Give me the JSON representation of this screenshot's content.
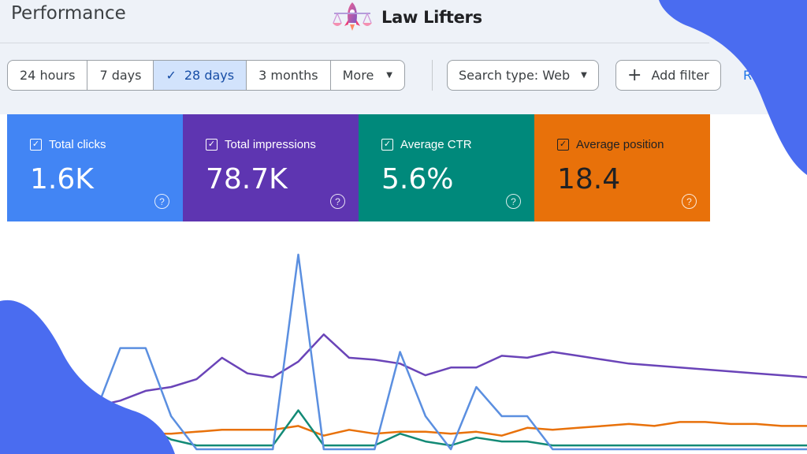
{
  "header": {
    "title": "Performance"
  },
  "logo": {
    "text": "Law Lifters"
  },
  "date_range": {
    "options": [
      {
        "label": "24 hours",
        "selected": false
      },
      {
        "label": "7 days",
        "selected": false
      },
      {
        "label": "28 days",
        "selected": true
      },
      {
        "label": "3 months",
        "selected": false
      },
      {
        "label": "More",
        "selected": false
      }
    ]
  },
  "filters": {
    "search_type": "Search type: Web",
    "add_filter": "Add filter",
    "reset": "Res"
  },
  "metrics": [
    {
      "label": "Total clicks",
      "value": "1.6K",
      "checked": true,
      "color": "#4285f4"
    },
    {
      "label": "Total impressions",
      "value": "78.7K",
      "checked": true,
      "color": "#5e35b1"
    },
    {
      "label": "Average CTR",
      "value": "5.6%",
      "checked": true,
      "color": "#00897b"
    },
    {
      "label": "Average position",
      "value": "18.4",
      "checked": true,
      "color": "#e8710a"
    }
  ],
  "icons": {
    "check": "check-icon",
    "dropdown": "caret-down-icon",
    "add": "plus-icon",
    "help": "help-circle-icon",
    "logo": "rocket-scales-icon"
  },
  "chart_data": {
    "type": "line",
    "x": [
      1,
      2,
      3,
      4,
      5,
      6,
      7,
      8,
      9,
      10,
      11,
      12,
      13,
      14,
      15,
      16,
      17,
      18,
      19,
      20,
      21,
      22,
      23,
      24,
      25,
      26,
      27,
      28,
      29,
      30
    ],
    "series": [
      {
        "name": "Total clicks",
        "color": "#5b8fe0",
        "values": [
          0.33,
          0.18,
          0.52,
          0.52,
          0.17,
          0,
          0,
          0,
          0,
          1.0,
          0,
          0,
          0,
          0.5,
          0.17,
          0,
          0.32,
          0.17,
          0.17,
          0,
          0,
          0,
          0,
          0,
          0,
          0,
          0,
          0,
          0,
          0
        ]
      },
      {
        "name": "Total impressions",
        "color": "#6a44b8",
        "values": [
          0.28,
          0.22,
          0.25,
          0.3,
          0.32,
          0.36,
          0.47,
          0.39,
          0.37,
          0.45,
          0.59,
          0.47,
          0.46,
          0.44,
          0.38,
          0.42,
          0.42,
          0.48,
          0.47,
          0.5,
          0.48,
          0.46,
          0.44,
          0.43,
          0.42,
          0.41,
          0.4,
          0.39,
          0.38,
          0.37
        ]
      },
      {
        "name": "Average CTR",
        "color": "#138a76",
        "values": [
          0.12,
          0.1,
          0.14,
          0.12,
          0.05,
          0.02,
          0.02,
          0.02,
          0.02,
          0.2,
          0.02,
          0.02,
          0.02,
          0.08,
          0.04,
          0.02,
          0.06,
          0.04,
          0.04,
          0.02,
          0.02,
          0.02,
          0.02,
          0.02,
          0.02,
          0.02,
          0.02,
          0.02,
          0.02,
          0.02
        ]
      },
      {
        "name": "Average position",
        "color": "#e8710a",
        "values": [
          0.1,
          0.1,
          0.09,
          0.08,
          0.08,
          0.09,
          0.1,
          0.1,
          0.1,
          0.12,
          0.07,
          0.1,
          0.08,
          0.09,
          0.09,
          0.08,
          0.09,
          0.07,
          0.11,
          0.1,
          0.11,
          0.12,
          0.13,
          0.12,
          0.14,
          0.14,
          0.13,
          0.13,
          0.12,
          0.12
        ]
      }
    ],
    "ylim": [
      0,
      1
    ],
    "grid": false,
    "legend": "none"
  }
}
